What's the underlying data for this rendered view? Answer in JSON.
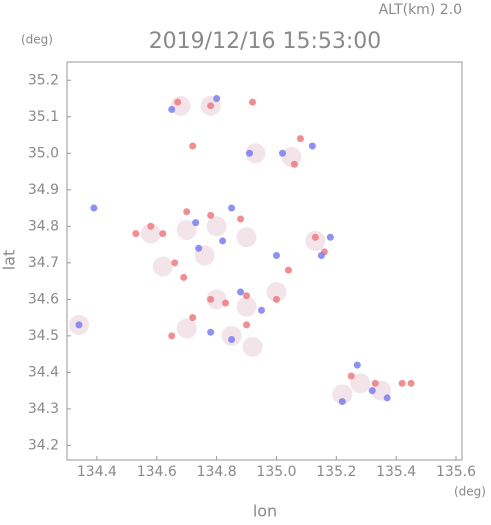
{
  "chart_data": {
    "type": "scatter",
    "title": "2019/12/16 15:53:00",
    "subtitle": "ALT(km) 2.0",
    "x_label": "lon",
    "x_unit": "(deg)",
    "y_label": "lat",
    "y_unit": "(deg)",
    "xlim": [
      134.3,
      135.62
    ],
    "ylim": [
      34.16,
      35.25
    ],
    "xticks": [
      134.4,
      134.6,
      134.8,
      {
        "value": 135.0,
        "label": "135.0"
      },
      135.2,
      135.4,
      135.6
    ],
    "yticks": [
      34.2,
      34.3,
      34.4,
      34.5,
      34.6,
      34.7,
      34.8,
      34.9,
      {
        "value": 35.0,
        "label": "35.0"
      },
      35.1,
      35.2
    ],
    "series": [
      {
        "color": "#f3e4e9",
        "x": [
          134.68,
          134.78,
          134.93,
          135.05,
          134.58,
          134.7,
          134.8,
          134.9,
          135.13,
          134.8,
          134.9,
          135.0,
          134.7,
          134.85,
          134.92,
          135.28,
          135.35,
          135.22,
          134.34,
          134.76,
          134.62
        ],
        "y": [
          35.13,
          35.13,
          35.0,
          34.99,
          34.78,
          34.79,
          34.8,
          34.77,
          34.76,
          34.6,
          34.58,
          34.62,
          34.52,
          34.5,
          34.47,
          34.37,
          34.35,
          34.34,
          34.53,
          34.72,
          34.69
        ]
      },
      {
        "color": "#ee7a7e",
        "x": [
          134.67,
          134.78,
          134.72,
          134.92,
          135.08,
          135.06,
          134.53,
          134.62,
          134.7,
          134.78,
          134.88,
          135.13,
          135.16,
          134.78,
          134.83,
          134.9,
          135.0,
          134.65,
          134.72,
          134.9,
          135.25,
          135.33,
          135.42,
          135.45,
          134.69,
          135.04,
          134.58,
          134.66
        ],
        "y": [
          35.14,
          35.13,
          35.02,
          35.14,
          35.04,
          34.97,
          34.78,
          34.78,
          34.84,
          34.83,
          34.82,
          34.77,
          34.73,
          34.6,
          34.59,
          34.61,
          34.6,
          34.5,
          34.55,
          34.53,
          34.39,
          34.37,
          34.37,
          34.37,
          34.66,
          34.68,
          34.8,
          34.7
        ]
      },
      {
        "color": "#7a7ef0",
        "x": [
          134.39,
          134.65,
          134.8,
          134.91,
          135.02,
          135.12,
          134.73,
          134.82,
          134.85,
          135.15,
          135.18,
          134.88,
          134.95,
          134.78,
          134.85,
          135.27,
          135.32,
          135.37,
          134.34,
          135.0,
          134.74,
          135.22
        ],
        "y": [
          34.85,
          35.12,
          35.15,
          35.0,
          35.0,
          35.02,
          34.81,
          34.76,
          34.85,
          34.72,
          34.77,
          34.62,
          34.57,
          34.51,
          34.49,
          34.42,
          34.35,
          34.33,
          34.53,
          34.72,
          34.74,
          34.32
        ]
      }
    ]
  }
}
